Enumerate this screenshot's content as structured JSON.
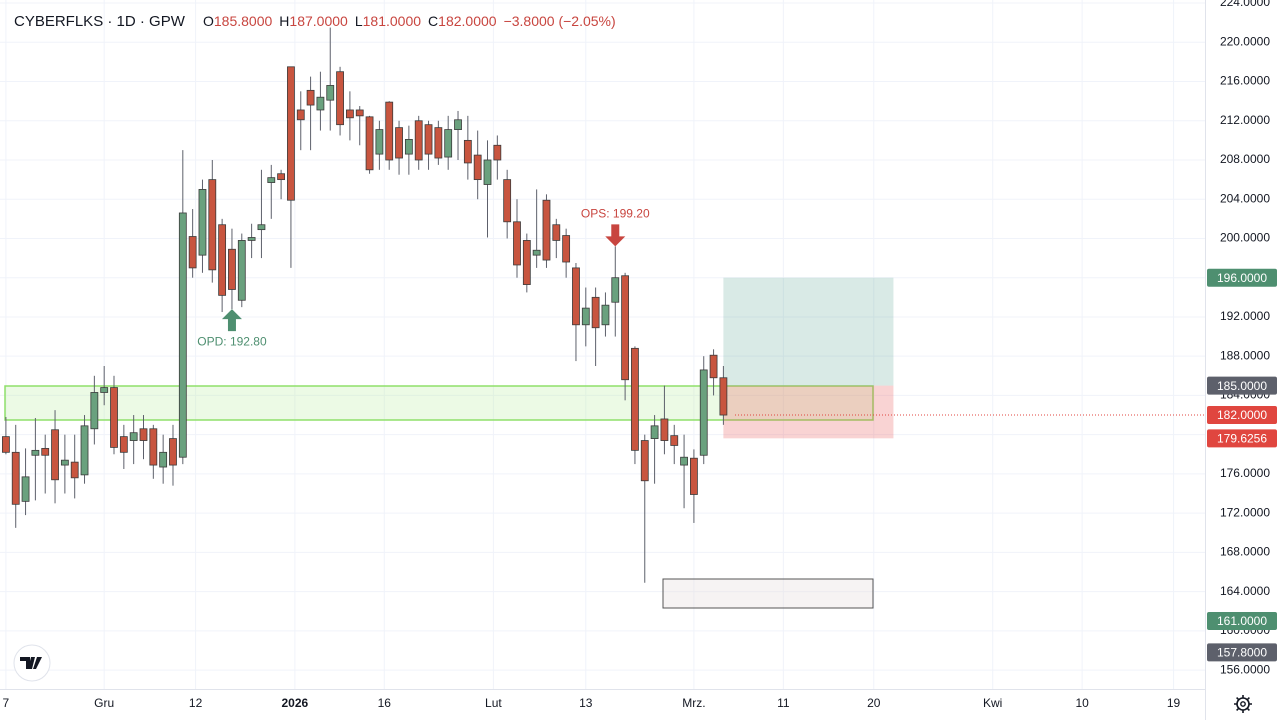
{
  "chart_data": {
    "type": "candlestick",
    "header": {
      "symbol": "CYBERFLKS · 1D · GPW",
      "ohlc": [
        {
          "key": "O",
          "text": "185.8000"
        },
        {
          "key": "H",
          "text": "187.0000"
        },
        {
          "key": "L",
          "text": "181.0000"
        },
        {
          "key": "C",
          "text": "182.0000"
        }
      ],
      "change": "−3.8000 (−2.05%)"
    },
    "up_color": "#6aa17e",
    "down_color": "#c8553f",
    "open": [
      179.8,
      178.2,
      173.2,
      177.9,
      178.6,
      180.5,
      176.9,
      177.2,
      175.9,
      180.6,
      184.3,
      184.8,
      179.8,
      179.4,
      180.6,
      180.6,
      176.7,
      179.6,
      177.7,
      200.2,
      198.3,
      206,
      201.4,
      198.9,
      193.7,
      199.8,
      200.9,
      205.7,
      206.6,
      217.5,
      213.1,
      215.1,
      213.1,
      214.1,
      217,
      213.1,
      213.1,
      212.4,
      208.6,
      213.9,
      211.3,
      208.6,
      212,
      211.6,
      211.3,
      208.3,
      211.1,
      210,
      208.5,
      205.5,
      209.5,
      206,
      201.7,
      199.8,
      198.3,
      203.9,
      201.4,
      200.3,
      197,
      191.2,
      194,
      191.2,
      193.5,
      196.2,
      188.8,
      179.4,
      179.6,
      181.6,
      179.9,
      176.9,
      177.6,
      177.9,
      188.1,
      185.8
    ],
    "high": [
      181.8,
      181,
      178.6,
      181.7,
      180,
      182.5,
      180,
      180,
      182,
      186,
      187,
      186,
      181,
      182,
      182,
      181,
      180,
      181,
      209,
      203,
      206,
      208,
      202,
      201,
      200.5,
      201.5,
      207,
      207.5,
      207,
      217.5,
      215,
      216.5,
      217,
      221.5,
      217.5,
      215,
      213.5,
      212.5,
      212,
      214,
      212,
      211.5,
      212.5,
      212,
      212,
      212.5,
      213,
      212.5,
      211,
      210,
      210.5,
      207,
      204,
      200.5,
      205,
      204.5,
      202,
      201,
      197.5,
      195,
      195,
      194.5,
      199.2,
      196.5,
      189,
      180,
      182,
      185,
      181,
      180,
      178.5,
      188,
      188.7,
      187
    ],
    "low": [
      178,
      170.5,
      171.8,
      173.3,
      174,
      173,
      174,
      173.5,
      175,
      179,
      183,
      178,
      176.5,
      177,
      177.5,
      175.5,
      175,
      174.8,
      177,
      196,
      196.5,
      195.5,
      192.5,
      192.8,
      193,
      198,
      198,
      202,
      204,
      197,
      209,
      209,
      211,
      211,
      210.5,
      210,
      209.5,
      206.6,
      207,
      207,
      206.5,
      206.5,
      207,
      207,
      207.5,
      207,
      208,
      206,
      204,
      200.1,
      206,
      200,
      196,
      194.5,
      197,
      197,
      198,
      196,
      187.5,
      189,
      187,
      190,
      190,
      183.5,
      177,
      164.9,
      175,
      178,
      177,
      172.5,
      171,
      177,
      184,
      181
    ],
    "close": [
      178.2,
      172.9,
      175.7,
      178.4,
      177.9,
      175.4,
      177.4,
      175.6,
      180.9,
      184.3,
      184.8,
      178.7,
      178.2,
      180.2,
      179.4,
      176.9,
      178.2,
      176.9,
      202.6,
      197,
      205,
      196.8,
      194.2,
      194.8,
      199.8,
      200.1,
      201.4,
      206.2,
      206,
      203.9,
      212.1,
      213.6,
      214.4,
      215.6,
      211.6,
      212.3,
      212.5,
      207,
      211.1,
      208,
      208.2,
      210.1,
      208,
      208.6,
      208.2,
      211.1,
      212.1,
      207.7,
      206,
      208,
      208,
      201.7,
      197.3,
      195.3,
      198.8,
      197.8,
      199.8,
      197.6,
      191.2,
      192.9,
      190.9,
      193.2,
      196,
      185.6,
      178.4,
      175.3,
      180.9,
      179.4,
      178.9,
      177.7,
      173.9,
      186.6,
      185.8,
      182
    ],
    "xlim": [
      -0.6,
      122
    ],
    "ylim": [
      153.97,
      224.31
    ],
    "xticks": [
      {
        "value": 0,
        "label": "7"
      },
      {
        "value": 10,
        "label": "Gru"
      },
      {
        "value": 19.3,
        "label": "12"
      },
      {
        "value": 29.4,
        "label": "2026"
      },
      {
        "value": 38.5,
        "label": "16"
      },
      {
        "value": 49.6,
        "label": "Lut"
      },
      {
        "value": 59,
        "label": "13"
      },
      {
        "value": 70,
        "label": "Mrz."
      },
      {
        "value": 79.1,
        "label": "11"
      },
      {
        "value": 88.3,
        "label": "20"
      },
      {
        "value": 100.4,
        "label": "Kwi"
      },
      {
        "value": 109.5,
        "label": "10"
      },
      {
        "value": 118.8,
        "label": "19"
      }
    ],
    "yticks": [
      {
        "value": 156,
        "label": "156.0000"
      },
      {
        "value": 160,
        "label": "160.0000"
      },
      {
        "value": 164,
        "label": "164.0000"
      },
      {
        "value": 168,
        "label": "168.0000"
      },
      {
        "value": 172,
        "label": "172.0000"
      },
      {
        "value": 176,
        "label": "176.0000"
      },
      {
        "value": 180,
        "label": "180.0000"
      },
      {
        "value": 184,
        "label": "184.0000"
      },
      {
        "value": 188,
        "label": "188.0000"
      },
      {
        "value": 192,
        "label": "192.0000"
      },
      {
        "value": 196,
        "label": "196.0000"
      },
      {
        "value": 200,
        "label": "200.0000"
      },
      {
        "value": 204,
        "label": "204.0000"
      },
      {
        "value": 208,
        "label": "208.0000"
      },
      {
        "value": 212,
        "label": "212.0000"
      },
      {
        "value": 216,
        "label": "216.0000"
      },
      {
        "value": 220,
        "label": "220.0000"
      },
      {
        "value": 224,
        "label": "224.0000"
      }
    ],
    "grid": true,
    "price_labels": [
      {
        "value": 196,
        "label": "196.0000",
        "color": "#4e8f70"
      },
      {
        "value": 185,
        "label": "185.0000",
        "color": "#5d606b"
      },
      {
        "value": 182,
        "label": "182.0000",
        "color": "#e0463f"
      },
      {
        "value": 179.6256,
        "label": "179.6256",
        "color": "#e0463f"
      },
      {
        "value": 161,
        "label": "161.0000",
        "color": "#4e8f70"
      },
      {
        "value": 157.8,
        "label": "157.8000",
        "color": "#5d606b"
      }
    ],
    "annotations": [
      {
        "text": "OPD: 192.80",
        "index": 23,
        "value": 192.8,
        "direction": "up",
        "color": "#4e8f70"
      },
      {
        "text": "OPS: 199.20",
        "index": 62,
        "value": 199.2,
        "direction": "down",
        "color": "#c8453f"
      }
    ]
  }
}
